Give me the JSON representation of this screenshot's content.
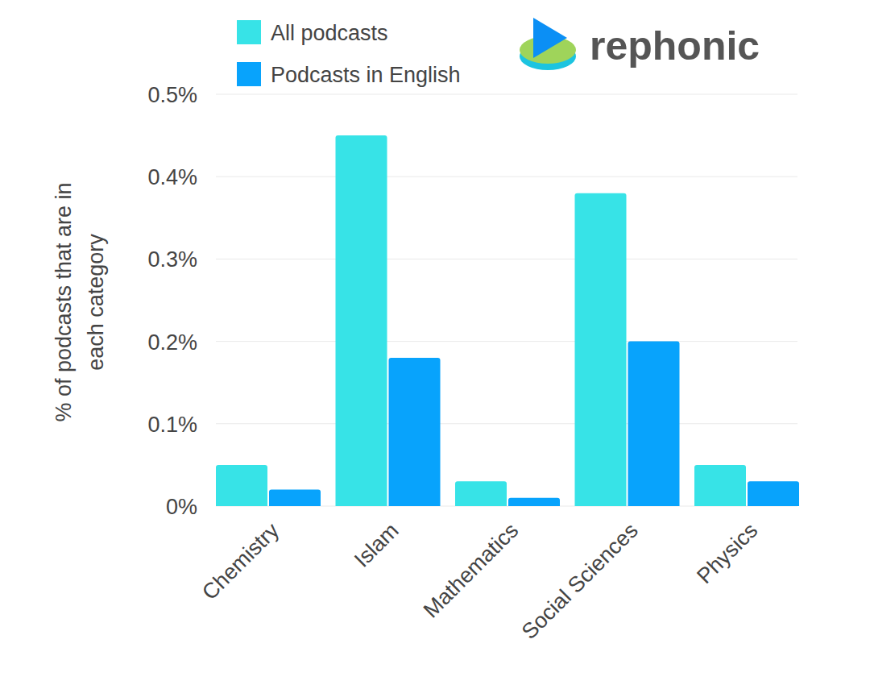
{
  "chart_data": {
    "type": "bar",
    "y_label": "% of podcasts that are in each category",
    "categories": [
      "Chemistry",
      "Islam",
      "Mathematics",
      "Social Sciences",
      "Physics"
    ],
    "series": [
      {
        "name": "All podcasts",
        "color": "#37e3e7",
        "values": [
          0.05,
          0.45,
          0.03,
          0.38,
          0.05
        ]
      },
      {
        "name": "Podcasts in English",
        "color": "#08a3fc",
        "values": [
          0.02,
          0.18,
          0.01,
          0.2,
          0.03
        ]
      }
    ],
    "ylim": [
      0,
      0.5
    ],
    "yticks": [
      {
        "value": 0,
        "label": "0%"
      },
      {
        "value": 0.1,
        "label": "0.1%"
      },
      {
        "value": 0.2,
        "label": "0.2%"
      },
      {
        "value": 0.3,
        "label": "0.3%"
      },
      {
        "value": 0.4,
        "label": "0.4%"
      },
      {
        "value": 0.5,
        "label": "0.5%"
      }
    ],
    "grid": true,
    "legend": "top-left"
  },
  "logo": {
    "text": "rephonic"
  }
}
